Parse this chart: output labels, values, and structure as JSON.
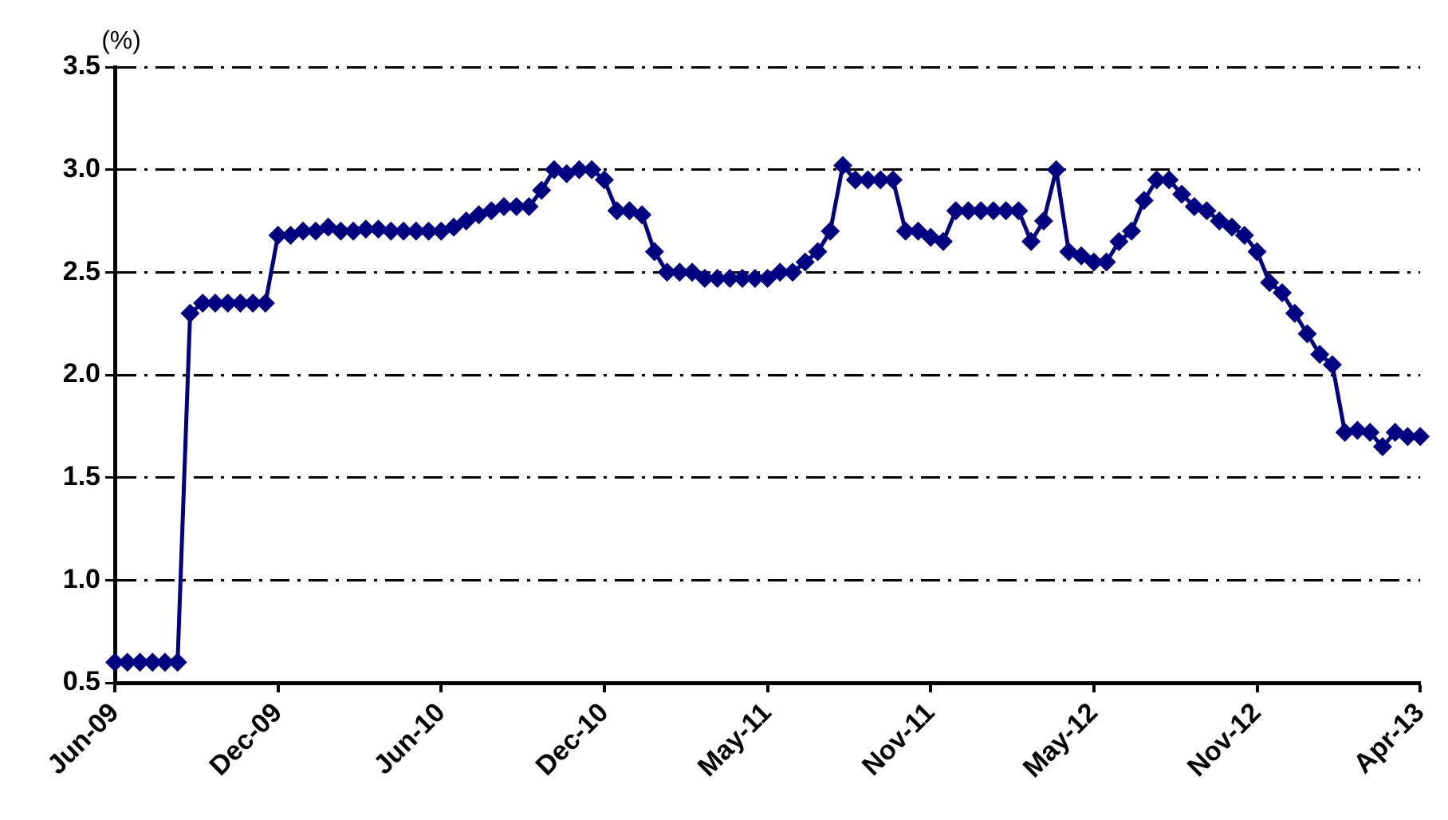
{
  "chart_data": {
    "type": "line",
    "ylabel": "(%)",
    "categories": [
      "Jun-09",
      null,
      null,
      null,
      null,
      null,
      null,
      null,
      null,
      null,
      null,
      null,
      null,
      "Dec-09",
      null,
      null,
      null,
      null,
      null,
      null,
      null,
      null,
      null,
      null,
      null,
      null,
      "Jun-10",
      null,
      null,
      null,
      null,
      null,
      null,
      null,
      null,
      null,
      null,
      null,
      null,
      "Dec-10",
      null,
      null,
      null,
      null,
      null,
      null,
      null,
      null,
      null,
      null,
      null,
      null,
      "May-11",
      null,
      null,
      null,
      null,
      null,
      null,
      null,
      null,
      null,
      null,
      null,
      null,
      "Nov-11",
      null,
      null,
      null,
      null,
      null,
      null,
      null,
      null,
      null,
      null,
      null,
      null,
      "May-12",
      null,
      null,
      null,
      null,
      null,
      null,
      null,
      null,
      null,
      null,
      null,
      null,
      "Nov-12",
      null,
      null,
      null,
      null,
      null,
      null,
      null,
      null,
      null,
      null,
      null,
      null,
      "Apr-13"
    ],
    "series": [
      {
        "color": "#000080",
        "values": [
          0.6,
          0.6,
          0.6,
          0.6,
          0.6,
          0.6,
          2.3,
          2.35,
          2.35,
          2.35,
          2.35,
          2.35,
          2.35,
          2.68,
          2.68,
          2.7,
          2.7,
          2.72,
          2.7,
          2.7,
          2.71,
          2.71,
          2.7,
          2.7,
          2.7,
          2.7,
          2.7,
          2.72,
          2.75,
          2.78,
          2.8,
          2.82,
          2.82,
          2.82,
          2.9,
          3.0,
          2.98,
          3.0,
          3.0,
          2.95,
          2.8,
          2.8,
          2.78,
          2.6,
          2.5,
          2.5,
          2.5,
          2.47,
          2.47,
          2.47,
          2.47,
          2.47,
          2.47,
          2.5,
          2.5,
          2.55,
          2.6,
          2.7,
          3.02,
          2.95,
          2.95,
          2.95,
          2.95,
          2.7,
          2.7,
          2.67,
          2.65,
          2.8,
          2.8,
          2.8,
          2.8,
          2.8,
          2.8,
          2.65,
          2.75,
          3.0,
          2.6,
          2.58,
          2.55,
          2.55,
          2.65,
          2.7,
          2.85,
          2.95,
          2.95,
          2.88,
          2.82,
          2.8,
          2.75,
          2.72,
          2.68,
          2.6,
          2.45,
          2.4,
          2.3,
          2.2,
          2.1,
          2.05,
          1.72,
          1.73,
          1.72,
          1.65,
          1.72,
          1.7,
          1.7
        ]
      }
    ],
    "ylim": [
      0.5,
      3.5
    ],
    "yticks": [
      0.5,
      {
        "value": 1,
        "label": "1.0"
      },
      1.5,
      {
        "value": 2,
        "label": "2.0"
      },
      2.5,
      {
        "value": 3,
        "label": "3.0"
      },
      3.5
    ],
    "grid": "y",
    "legend": false,
    "marker": "diamond",
    "line_style": "solid"
  }
}
